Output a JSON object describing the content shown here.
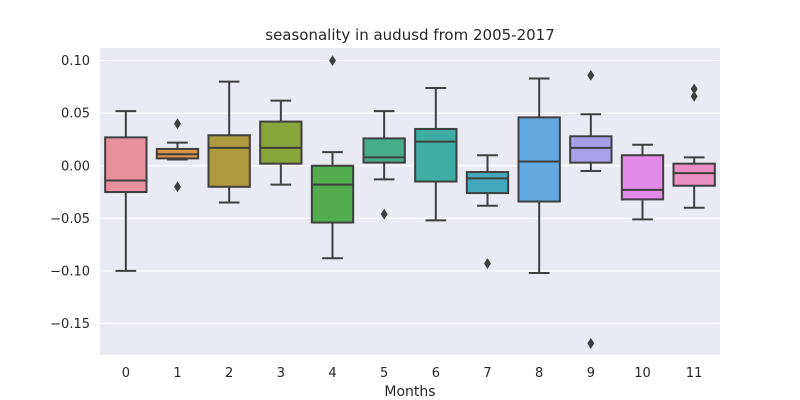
{
  "chart_data": {
    "type": "box",
    "title": "seasonality in audusd from 2005-2017",
    "xlabel": "Months",
    "ylabel": "",
    "categories": [
      "0",
      "1",
      "2",
      "3",
      "4",
      "5",
      "6",
      "7",
      "8",
      "9",
      "10",
      "11"
    ],
    "ylim": [
      -0.18,
      0.112
    ],
    "yticks": [
      0.1,
      0.05,
      0.0,
      -0.05,
      -0.1,
      -0.15
    ],
    "ytick_labels": [
      "0.10",
      "0.05",
      "0.00",
      "−0.05",
      "−0.10",
      "−0.15"
    ],
    "grid": true,
    "boxes": [
      {
        "month": "0",
        "whisker_low": -0.1,
        "q1": -0.025,
        "median": -0.014,
        "q3": 0.027,
        "whisker_high": 0.052,
        "outliers": [],
        "color": "#e8909b"
      },
      {
        "month": "1",
        "whisker_low": 0.006,
        "q1": 0.007,
        "median": 0.011,
        "q3": 0.016,
        "whisker_high": 0.022,
        "outliers": [
          0.04,
          -0.02
        ],
        "color": "#d9954a"
      },
      {
        "month": "2",
        "whisker_low": -0.035,
        "q1": -0.02,
        "median": 0.017,
        "q3": 0.029,
        "whisker_high": 0.08,
        "outliers": [],
        "color": "#ae9a3f"
      },
      {
        "month": "3",
        "whisker_low": -0.018,
        "q1": 0.002,
        "median": 0.017,
        "q3": 0.042,
        "whisker_high": 0.062,
        "outliers": [],
        "color": "#8aa43c"
      },
      {
        "month": "4",
        "whisker_low": -0.088,
        "q1": -0.054,
        "median": -0.018,
        "q3": 0.0,
        "whisker_high": 0.013,
        "outliers": [
          0.1
        ],
        "color": "#52ad4e"
      },
      {
        "month": "5",
        "whisker_low": -0.013,
        "q1": 0.003,
        "median": 0.008,
        "q3": 0.026,
        "whisker_high": 0.052,
        "outliers": [
          -0.046
        ],
        "color": "#48ad8b"
      },
      {
        "month": "6",
        "whisker_low": -0.052,
        "q1": -0.015,
        "median": 0.023,
        "q3": 0.035,
        "whisker_high": 0.074,
        "outliers": [],
        "color": "#3eaea4"
      },
      {
        "month": "7",
        "whisker_low": -0.038,
        "q1": -0.026,
        "median": -0.012,
        "q3": -0.006,
        "whisker_high": 0.01,
        "outliers": [
          -0.093
        ],
        "color": "#44a9bd"
      },
      {
        "month": "8",
        "whisker_low": -0.102,
        "q1": -0.034,
        "median": 0.004,
        "q3": 0.046,
        "whisker_high": 0.083,
        "outliers": [],
        "color": "#62a9e2"
      },
      {
        "month": "9",
        "whisker_low": -0.005,
        "q1": 0.003,
        "median": 0.017,
        "q3": 0.028,
        "whisker_high": 0.049,
        "outliers": [
          0.086,
          -0.169
        ],
        "color": "#a9a0ec"
      },
      {
        "month": "10",
        "whisker_low": -0.051,
        "q1": -0.032,
        "median": -0.023,
        "q3": 0.01,
        "whisker_high": 0.02,
        "outliers": [],
        "color": "#e28ae8"
      },
      {
        "month": "11",
        "whisker_low": -0.04,
        "q1": -0.019,
        "median": -0.007,
        "q3": 0.002,
        "whisker_high": 0.008,
        "outliers": [
          0.073,
          0.066
        ],
        "color": "#ec8fc5"
      }
    ]
  }
}
